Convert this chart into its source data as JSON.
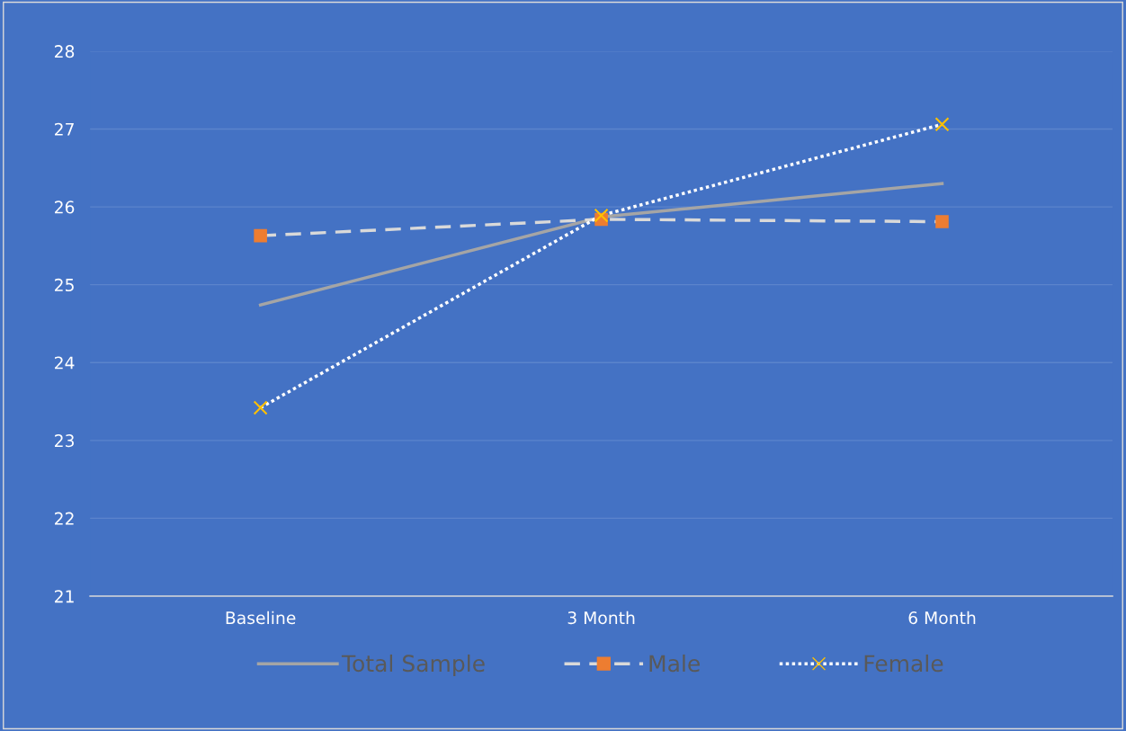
{
  "chart_data": {
    "type": "line",
    "categories": [
      "Baseline",
      "3 Month",
      "6 Month"
    ],
    "series": [
      {
        "name": "Total Sample",
        "color": "#a5a5a5",
        "marker": "none",
        "line_style": "solid",
        "values": [
          24.74,
          25.87,
          26.3
        ]
      },
      {
        "name": "Male",
        "color": "#d9d9d9",
        "colors": [
          "#ed7d31",
          "#ed7d31",
          "#ed7d31"
        ],
        "marker": "square",
        "line_style": "dashed",
        "values": [
          25.63,
          25.84,
          25.81
        ]
      },
      {
        "name": "Female",
        "color": "#ffffff",
        "colors": [
          "#ffc000",
          "#ffc000",
          "#ffc000"
        ],
        "marker": "cross",
        "line_style": "dotted",
        "values": [
          23.42,
          25.89,
          27.06
        ]
      }
    ],
    "ylim": [
      21,
      28
    ],
    "yticks": [
      21,
      22,
      23,
      24,
      25,
      26,
      27,
      28
    ],
    "grid": "y",
    "legend": "bottom"
  }
}
